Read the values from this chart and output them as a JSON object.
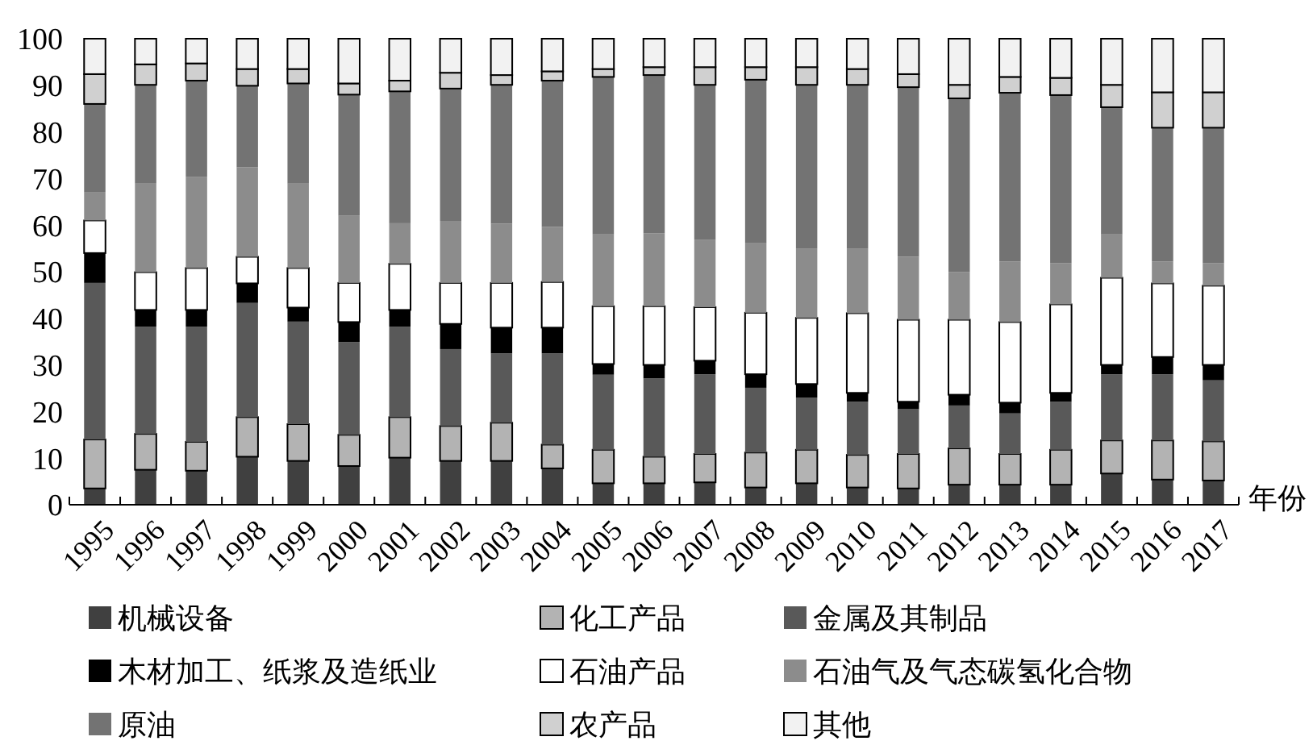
{
  "chart_data": {
    "type": "bar",
    "stacked": true,
    "xlabel": "年份",
    "legend": "bottom",
    "categories": [
      "1995",
      "1996",
      "1997",
      "1998",
      "1999",
      "2000",
      "2001",
      "2002",
      "2003",
      "2004",
      "2005",
      "2006",
      "2007",
      "2008",
      "2009",
      "2010",
      "2011",
      "2012",
      "2013",
      "2014",
      "2015",
      "2016",
      "2017"
    ],
    "ylim": [
      0,
      100
    ],
    "yticks": [
      0,
      10,
      20,
      30,
      40,
      50,
      60,
      70,
      80,
      90,
      100
    ],
    "series": [
      {
        "name": "机械设备",
        "color": "#404040",
        "values": [
          3.5,
          7.5,
          7.3,
          10.3,
          9.4,
          8.3,
          10.1,
          9.4,
          9.4,
          7.8,
          4.6,
          4.6,
          4.8,
          3.7,
          4.6,
          3.7,
          3.5,
          4.3,
          4.3,
          4.3,
          6.7,
          5.4,
          5.2
        ]
      },
      {
        "name": "化工产品",
        "color": "#b3b3b3",
        "values": [
          10.5,
          7.7,
          6.2,
          8.5,
          7.9,
          6.7,
          8.7,
          7.5,
          8.2,
          5.1,
          7.2,
          5.7,
          6.1,
          7.5,
          7.2,
          7,
          7.4,
          7.8,
          6.6,
          7.5,
          7.1,
          8.4,
          8.4
        ]
      },
      {
        "name": "金属及其制品",
        "color": "#595959",
        "values": [
          33.6,
          23,
          24.7,
          24.5,
          22,
          19.9,
          19.4,
          16.5,
          14.9,
          19.6,
          16.1,
          16.8,
          17.1,
          13.9,
          11.2,
          11.4,
          9.6,
          9.2,
          8.7,
          10.3,
          14.2,
          14.2,
          13.1
        ]
      },
      {
        "name": "木材加工、纸浆及造纸业",
        "color": "#000000",
        "values": [
          6.4,
          3.6,
          3.6,
          4.2,
          3,
          4.3,
          3.6,
          5.4,
          5.5,
          5.5,
          2.3,
          2.9,
          2.9,
          2.9,
          2.9,
          1.9,
          1.6,
          2.3,
          2.3,
          1.9,
          2,
          3.7,
          3.3
        ]
      },
      {
        "name": "石油产品",
        "color": "#ffffff",
        "values": [
          7,
          8.1,
          9,
          5.7,
          8.5,
          8.4,
          9.9,
          8.8,
          9.6,
          9.8,
          12.4,
          12.6,
          11.5,
          13.2,
          14.2,
          17.1,
          17.6,
          16.1,
          17.3,
          19,
          18.7,
          15.8,
          17
        ]
      },
      {
        "name": "石油气及气态碳氢化合物",
        "color": "#8c8c8c",
        "values": [
          6,
          19,
          19.5,
          19.2,
          18.1,
          14.4,
          8.7,
          13.3,
          12.7,
          11.8,
          15.4,
          15.6,
          14.4,
          14.9,
          14.9,
          13.9,
          13.5,
          10.2,
          13,
          8.8,
          9.3,
          4.7,
          4.8
        ]
      },
      {
        "name": "原油",
        "color": "#737373",
        "values": [
          19,
          21.2,
          20.7,
          17.5,
          21.5,
          26,
          28.3,
          28.4,
          29.8,
          31.4,
          33.8,
          34,
          33.3,
          35.1,
          35.1,
          35.1,
          36.4,
          37.3,
          36.2,
          36.1,
          27.3,
          28.7,
          29.1
        ]
      },
      {
        "name": "农产品",
        "color": "#d0d0d0",
        "values": [
          6.4,
          4.4,
          3.7,
          3.6,
          3.1,
          2.4,
          2.3,
          3.4,
          2.1,
          2,
          1.7,
          1.7,
          3.8,
          2.7,
          3.8,
          3.4,
          2.8,
          2.9,
          3.4,
          3.7,
          4.8,
          7.6,
          7.6
        ]
      },
      {
        "name": "其他",
        "color": "#f2f2f2",
        "values": [
          7.6,
          5.5,
          5.3,
          6.5,
          6.5,
          9.6,
          9,
          7.3,
          7.8,
          7,
          6.5,
          6.1,
          6.1,
          6.1,
          6.1,
          6.5,
          7.6,
          9.9,
          8.2,
          8.4,
          9.9,
          11.5,
          11.5
        ]
      }
    ]
  }
}
